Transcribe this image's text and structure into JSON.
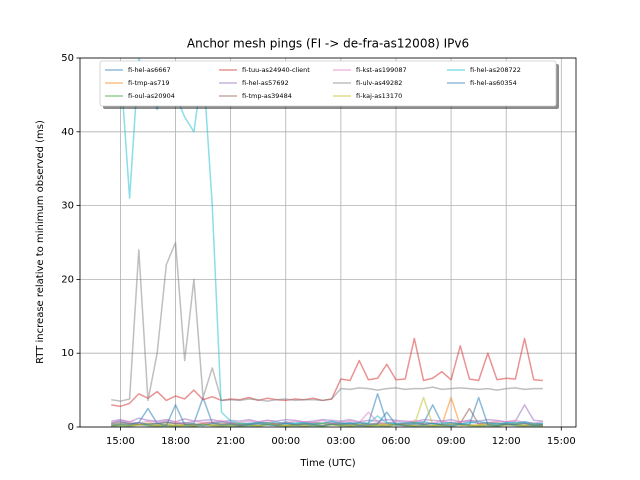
{
  "chart_data": {
    "type": "line",
    "title": "Anchor mesh pings (FI -> de-fra-as12008) IPv6",
    "x_label": "Time (UTC)",
    "y_label": "RTT increase relative to minimum observed (ms)",
    "xlim": [
      12.8,
      39.8
    ],
    "ylim": [
      0,
      50
    ],
    "xticks": [
      {
        "value": 15,
        "label": "15:00"
      },
      {
        "value": 18,
        "label": "18:00"
      },
      {
        "value": 21,
        "label": "21:00"
      },
      {
        "value": 24,
        "label": "00:00"
      },
      {
        "value": 27,
        "label": "03:00"
      },
      {
        "value": 30,
        "label": "06:00"
      },
      {
        "value": 33,
        "label": "09:00"
      },
      {
        "value": 36,
        "label": "12:00"
      },
      {
        "value": 39,
        "label": "15:00"
      }
    ],
    "yticks": [
      0,
      10,
      20,
      30,
      40,
      50
    ],
    "grid": true,
    "legend": "upper center",
    "x": [
      14.5,
      15,
      15.5,
      16,
      16.5,
      17,
      17.5,
      18,
      18.5,
      19,
      19.5,
      20,
      20.5,
      21,
      21.5,
      22,
      22.5,
      23,
      23.5,
      24,
      24.5,
      25,
      25.5,
      26,
      26.5,
      27,
      27.5,
      28,
      28.5,
      29,
      29.5,
      30,
      30.5,
      31,
      31.5,
      32,
      32.5,
      33,
      33.5,
      34,
      34.5,
      35,
      35.5,
      36,
      36.5,
      37,
      37.5,
      38
    ],
    "series": [
      {
        "name": "fi-hel-as6667",
        "color": "#1f77b4",
        "values": [
          0.5,
          0.8,
          0.4,
          0.6,
          2.5,
          0.5,
          0.7,
          0.4,
          0.6,
          0.5,
          4,
          0.5,
          0.7,
          0.6,
          0.4,
          0.5,
          0.6,
          0.5,
          0.4,
          0.7,
          0.5,
          0.6,
          0.4,
          0.5,
          0.7,
          0.5,
          0.6,
          0.4,
          0.5,
          4.5,
          0.6,
          0.5,
          0.4,
          0.6,
          0.5,
          3,
          0.5,
          0.6,
          0.4,
          0.7,
          0.5,
          0.6,
          0.4,
          0.5,
          0.6,
          0.7,
          0.5,
          0.4
        ]
      },
      {
        "name": "fi-tmp-as719",
        "color": "#ff7f0e",
        "values": [
          0.2,
          0.3,
          0.2,
          0.4,
          0.3,
          0.2,
          0.3,
          0.2,
          0.3,
          0.2,
          0.4,
          0.3,
          0.2,
          0.3,
          0.2,
          0.3,
          0.2,
          0.4,
          0.3,
          0.2,
          0.3,
          0.2,
          0.3,
          0.2,
          0.4,
          0.3,
          0.2,
          0.3,
          0.2,
          0.3,
          0.2,
          0.4,
          0.3,
          0.2,
          0.3,
          0.2,
          0.3,
          4,
          0.2,
          0.3,
          0.2,
          0.3,
          0.2,
          0.4,
          0.3,
          0.2,
          0.3,
          0.2
        ]
      },
      {
        "name": "fi-oul-as20904",
        "color": "#2ca02c",
        "values": [
          0.1,
          0.2,
          0.1,
          0.3,
          0.2,
          0.1,
          0.2,
          0.1,
          0.2,
          0.1,
          0.3,
          0.2,
          0.1,
          0.2,
          0.1,
          0.2,
          0.1,
          0.3,
          0.2,
          0.1,
          0.2,
          0.1,
          0.2,
          0.1,
          0.3,
          0.2,
          0.1,
          0.2,
          0.1,
          0.2,
          0.1,
          0.3,
          0.2,
          0.1,
          0.2,
          0.1,
          0.2,
          0.1,
          0.3,
          0.2,
          0.1,
          0.2,
          0.1,
          0.3,
          0.2,
          0.1,
          0.2,
          0.1
        ]
      },
      {
        "name": "fi-tuu-as24940-client",
        "color": "#d62728",
        "values": [
          3.0,
          2.8,
          3.2,
          4.5,
          3.9,
          4.8,
          3.6,
          4.2,
          3.8,
          5.0,
          3.7,
          4.1,
          3.6,
          3.8,
          3.7,
          4.0,
          3.6,
          3.9,
          3.7,
          3.6,
          3.8,
          3.7,
          3.9,
          3.6,
          3.8,
          6.5,
          6.3,
          9,
          6.4,
          6.6,
          8.5,
          6.4,
          6.5,
          12,
          6.3,
          6.6,
          7.5,
          6.4,
          11,
          6.5,
          6.3,
          10,
          6.4,
          6.6,
          6.5,
          12,
          6.4,
          6.3
        ]
      },
      {
        "name": "fi-hel-as57692",
        "color": "#9467bd",
        "values": [
          0.8,
          1.0,
          0.7,
          1.2,
          0.9,
          0.8,
          1.0,
          0.7,
          1.1,
          0.8,
          0.9,
          1.0,
          0.7,
          0.9,
          0.8,
          1.0,
          0.7,
          0.9,
          0.8,
          1.0,
          0.9,
          0.7,
          0.8,
          1.0,
          0.9,
          0.8,
          1.0,
          0.7,
          0.9,
          0.8,
          1.0,
          0.9,
          0.8,
          0.7,
          1.0,
          0.9,
          0.8,
          1.0,
          0.7,
          0.9,
          0.8,
          1.0,
          0.9,
          0.7,
          0.8,
          3,
          0.9,
          0.8
        ]
      },
      {
        "name": "fi-tmp-as39484",
        "color": "#8c564b",
        "values": [
          0.4,
          0.6,
          0.5,
          0.3,
          0.5,
          0.4,
          0.6,
          0.5,
          0.4,
          0.3,
          0.5,
          0.6,
          0.4,
          0.5,
          0.3,
          0.4,
          0.5,
          0.6,
          0.4,
          0.5,
          0.3,
          0.4,
          0.6,
          0.5,
          0.4,
          0.5,
          0.3,
          0.6,
          0.4,
          0.5,
          0.4,
          0.3,
          0.5,
          0.6,
          0.4,
          0.5,
          0.3,
          0.4,
          0.5,
          2.5,
          0.4,
          0.5,
          0.6,
          0.3,
          0.4,
          0.5,
          0.4,
          0.3
        ]
      },
      {
        "name": "fi-kst-as199087",
        "color": "#e377c2",
        "values": [
          0.6,
          0.9,
          0.7,
          0.5,
          0.8,
          0.6,
          0.9,
          0.7,
          0.5,
          0.8,
          0.6,
          0.7,
          0.9,
          0.5,
          0.6,
          0.8,
          0.7,
          0.9,
          0.6,
          0.5,
          0.8,
          0.7,
          0.6,
          0.9,
          0.5,
          0.7,
          0.8,
          0.6,
          2,
          0.7,
          0.5,
          0.8,
          0.6,
          0.9,
          0.7,
          0.5,
          0.8,
          0.6,
          0.7,
          0.9,
          0.5,
          0.6,
          0.8,
          0.7,
          0.9,
          0.6,
          0.5,
          0.7
        ]
      },
      {
        "name": "fi-ulv-as49282",
        "color": "#7f7f7f",
        "values": [
          3.7,
          3.5,
          3.8,
          24,
          3.6,
          10,
          22,
          25,
          9,
          20,
          4,
          8,
          3.6,
          3.7,
          3.6,
          3.8,
          3.7,
          3.5,
          3.7,
          3.8,
          3.6,
          3.7,
          3.7,
          3.6,
          3.8,
          5.2,
          5.1,
          5.3,
          5.2,
          5.0,
          5.2,
          5.3,
          5.1,
          5.2,
          5.2,
          5.4,
          5.1,
          5.2,
          5.3,
          5.2,
          5.1,
          5.2,
          5.0,
          5.2,
          5.3,
          5.1,
          5.2,
          5.2
        ]
      },
      {
        "name": "fi-kaj-as13170",
        "color": "#bcbd22",
        "values": [
          0.3,
          0.4,
          0.2,
          0.3,
          0.5,
          0.3,
          0.4,
          0.2,
          0.3,
          0.4,
          0.3,
          0.2,
          0.4,
          0.3,
          0.5,
          0.3,
          0.2,
          0.4,
          0.3,
          0.2,
          0.3,
          0.4,
          0.3,
          0.5,
          0.3,
          0.2,
          0.4,
          0.3,
          0.2,
          0.3,
          0.4,
          0.3,
          0.2,
          0.3,
          4,
          0.3,
          0.2,
          0.4,
          0.3,
          0.2,
          0.3,
          0.4,
          0.2,
          0.3,
          0.5,
          0.3,
          0.4,
          0.2
        ]
      },
      {
        "name": "fi-hel-as208722",
        "color": "#17becf",
        "values": [
          44,
          49,
          31,
          50,
          47,
          43,
          48,
          45,
          42,
          40,
          49,
          30,
          2,
          0.8,
          0.5,
          0.4,
          0.6,
          0.5,
          0.7,
          0.4,
          0.5,
          0.6,
          0.4,
          0.5,
          0.8,
          0.5,
          0.4,
          0.6,
          0.5,
          1.5,
          0.5,
          0.4,
          0.6,
          0.5,
          0.7,
          0.4,
          0.5,
          0.6,
          0.4,
          0.5,
          0.8,
          0.5,
          0.4,
          0.6,
          0.5,
          0.7,
          0.4,
          0.5
        ]
      },
      {
        "name": "fi-hel-as60354",
        "color": "#1f77b4",
        "values": [
          0.2,
          0.4,
          0.3,
          0.6,
          0.3,
          0.5,
          0.2,
          3,
          0.3,
          0.4,
          0.2,
          0.5,
          0.3,
          0.4,
          0.2,
          0.3,
          0.4,
          0.3,
          0.2,
          0.5,
          0.3,
          0.4,
          0.3,
          0.2,
          0.4,
          0.3,
          0.5,
          0.2,
          0.3,
          0.4,
          2,
          0.3,
          0.2,
          0.4,
          0.3,
          0.5,
          0.3,
          0.2,
          0.4,
          0.3,
          4,
          0.3,
          0.2,
          0.4,
          0.3,
          0.5,
          0.2,
          0.3
        ]
      }
    ]
  }
}
